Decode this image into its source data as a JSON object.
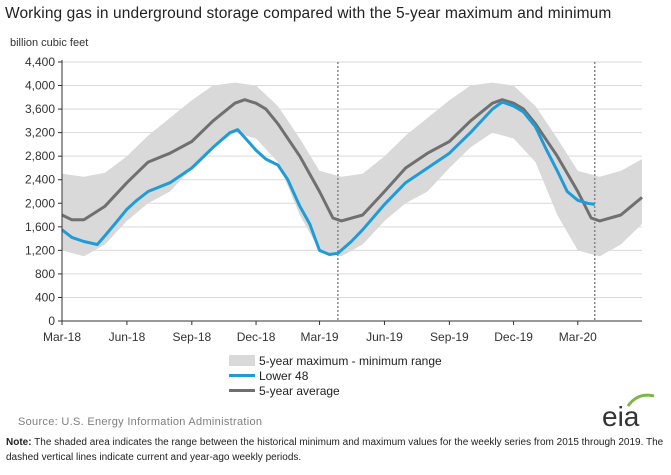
{
  "title": "Working gas in underground storage compared with the 5-year maximum and minimum",
  "source": "Source:  U.S. Energy Information Administration",
  "note_label": "Note:",
  "note_text": " The shaded area indicates the range between the historical minimum and maximum values for the weekly series from 2015 through 2019. The dashed vertical lines indicate current and year-ago weekly periods.",
  "logo_text": "eia",
  "colors": {
    "range": "#d9d9d9",
    "lower48": "#1f9cd8",
    "average": "#707070",
    "logo_arc": "#7ab648"
  },
  "chart_data": {
    "type": "area",
    "ylabel": "billion cubic feet",
    "ylim": [
      0,
      4400
    ],
    "yticks": [
      0,
      400,
      800,
      1200,
      1600,
      2000,
      2400,
      2800,
      3200,
      3600,
      4000,
      4400
    ],
    "yticklabels": [
      "0",
      "400",
      "800",
      "1,200",
      "1,600",
      "2,000",
      "2,400",
      "2,800",
      "3,200",
      "3,600",
      "4,000",
      "4,400"
    ],
    "xlim": [
      "2018-03-01",
      "2020-05-31"
    ],
    "xticks": [
      "2018-03-01",
      "2018-06-01",
      "2018-09-01",
      "2018-12-01",
      "2019-03-01",
      "2019-06-01",
      "2019-09-01",
      "2019-12-01",
      "2020-03-01"
    ],
    "xticklabels": [
      "Mar-18",
      "Jun-18",
      "Sep-18",
      "Dec-18",
      "Mar-19",
      "Jun-19",
      "Sep-19",
      "Dec-19",
      "Mar-20"
    ],
    "grid": "horizontal",
    "legend_position": "bottom",
    "reference_lines": [
      "2019-03-27",
      "2020-03-25"
    ],
    "range": {
      "name": "5-year maximum - minimum range",
      "x": [
        "2018-03-01",
        "2018-04-01",
        "2018-05-01",
        "2018-06-01",
        "2018-07-01",
        "2018-08-01",
        "2018-09-01",
        "2018-10-01",
        "2018-11-01",
        "2018-12-01",
        "2019-01-01",
        "2019-02-01",
        "2019-03-01",
        "2019-04-01",
        "2019-05-01",
        "2019-06-01",
        "2019-07-01",
        "2019-08-01",
        "2019-09-01",
        "2019-10-01",
        "2019-11-01",
        "2019-12-01",
        "2020-01-01",
        "2020-02-01",
        "2020-03-01",
        "2020-04-01",
        "2020-05-01",
        "2020-05-31"
      ],
      "max": [
        2500,
        2450,
        2520,
        2800,
        3150,
        3450,
        3750,
        4000,
        4050,
        4000,
        3650,
        3100,
        2550,
        2450,
        2500,
        2800,
        3150,
        3450,
        3750,
        4000,
        4050,
        4000,
        3650,
        3100,
        2550,
        2450,
        2550,
        2750
      ],
      "min": [
        1200,
        1100,
        1300,
        1700,
        2000,
        2200,
        2600,
        2950,
        3200,
        3100,
        2700,
        1800,
        1200,
        1100,
        1300,
        1700,
        2000,
        2200,
        2600,
        2950,
        3200,
        3100,
        2700,
        1800,
        1200,
        1100,
        1300,
        1650
      ]
    },
    "series": [
      {
        "name": "Lower 48",
        "x": [
          "2018-03-01",
          "2018-03-15",
          "2018-04-01",
          "2018-04-20",
          "2018-05-01",
          "2018-05-15",
          "2018-06-01",
          "2018-06-15",
          "2018-07-01",
          "2018-08-01",
          "2018-09-01",
          "2018-10-01",
          "2018-10-25",
          "2018-11-05",
          "2018-11-20",
          "2018-12-01",
          "2018-12-15",
          "2019-01-01",
          "2019-01-15",
          "2019-02-01",
          "2019-02-15",
          "2019-03-01",
          "2019-03-15",
          "2019-03-27",
          "2019-04-15",
          "2019-05-01",
          "2019-06-01",
          "2019-07-01",
          "2019-08-01",
          "2019-09-01",
          "2019-10-01",
          "2019-11-01",
          "2019-11-15",
          "2019-12-01",
          "2019-12-15",
          "2020-01-01",
          "2020-01-15",
          "2020-02-01",
          "2020-02-15",
          "2020-03-01",
          "2020-03-15",
          "2020-03-25"
        ],
        "y": [
          1550,
          1420,
          1350,
          1300,
          1450,
          1650,
          1900,
          2050,
          2200,
          2350,
          2600,
          2950,
          3200,
          3250,
          3050,
          2900,
          2750,
          2650,
          2400,
          1950,
          1650,
          1200,
          1130,
          1150,
          1350,
          1550,
          1980,
          2350,
          2600,
          2850,
          3200,
          3600,
          3720,
          3650,
          3550,
          3300,
          2950,
          2550,
          2200,
          2050,
          2000,
          1980
        ]
      },
      {
        "name": "5-year average",
        "x": [
          "2018-03-01",
          "2018-03-15",
          "2018-04-01",
          "2018-05-01",
          "2018-06-01",
          "2018-07-01",
          "2018-08-01",
          "2018-09-01",
          "2018-10-01",
          "2018-11-01",
          "2018-11-15",
          "2018-12-01",
          "2018-12-15",
          "2019-01-01",
          "2019-02-01",
          "2019-03-01",
          "2019-03-20",
          "2019-04-01",
          "2019-05-01",
          "2019-06-01",
          "2019-07-01",
          "2019-08-01",
          "2019-09-01",
          "2019-10-01",
          "2019-11-01",
          "2019-11-15",
          "2019-12-01",
          "2019-12-15",
          "2020-01-01",
          "2020-02-01",
          "2020-03-01",
          "2020-03-20",
          "2020-04-01",
          "2020-05-01",
          "2020-05-31"
        ],
        "y": [
          1800,
          1720,
          1720,
          1950,
          2350,
          2700,
          2850,
          3050,
          3400,
          3700,
          3760,
          3700,
          3600,
          3350,
          2800,
          2200,
          1750,
          1700,
          1800,
          2200,
          2600,
          2850,
          3050,
          3400,
          3700,
          3760,
          3700,
          3600,
          3350,
          2800,
          2200,
          1750,
          1700,
          1800,
          2100
        ]
      }
    ]
  }
}
